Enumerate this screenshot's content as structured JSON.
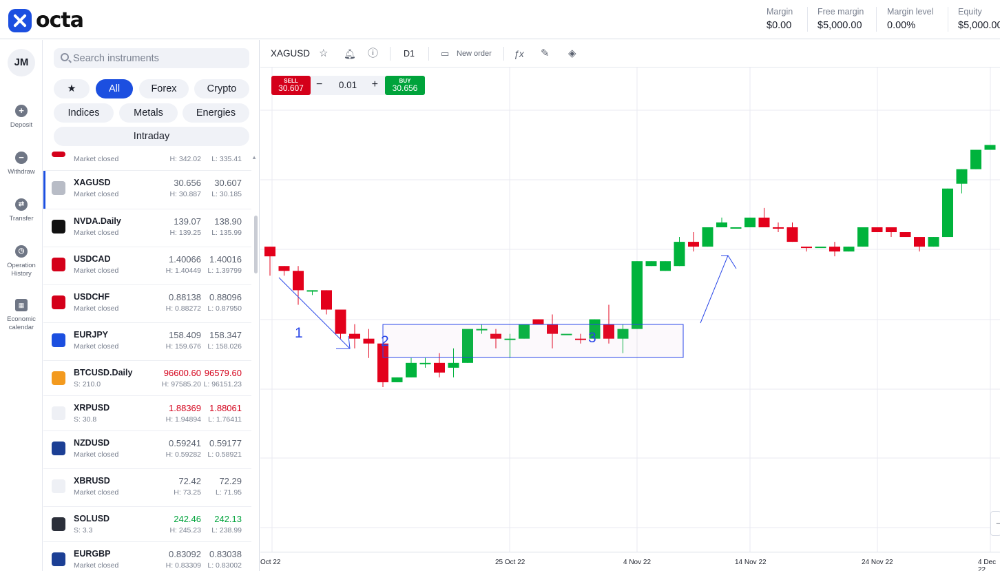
{
  "header": {
    "logo": "octa",
    "account": [
      {
        "label": "Margin",
        "value": "$0.00"
      },
      {
        "label": "Free margin",
        "value": "$5,000.00"
      },
      {
        "label": "Margin level",
        "value": "0.00%"
      },
      {
        "label": "Equity",
        "value": "$5,000.00"
      }
    ]
  },
  "rail": {
    "avatar": "JM",
    "items": [
      {
        "label": "Deposit",
        "icon": "plus-circle-icon"
      },
      {
        "label": "Withdraw",
        "icon": "minus-circle-icon"
      },
      {
        "label": "Transfer",
        "icon": "transfer-icon"
      },
      {
        "label": "Operation History",
        "icon": "clock-icon"
      },
      {
        "label": "Economic calendar",
        "icon": "calendar-icon"
      }
    ]
  },
  "panel": {
    "search_placeholder": "Search instruments",
    "chips": [
      "★",
      "All",
      "Forex",
      "Crypto",
      "Indices",
      "Metals",
      "Energies",
      "Intraday"
    ],
    "active_chip": "All",
    "instruments": [
      {
        "name": "",
        "sub": "Market closed",
        "p1": "",
        "p2": "",
        "h": "H: 342.02",
        "l": "L: 335.41",
        "color": "",
        "flag": "#d4001a"
      },
      {
        "name": "XAGUSD",
        "sub": "Market closed",
        "p1": "30.656",
        "p2": "30.607",
        "h": "H: 30.887",
        "l": "L: 30.185",
        "color": "",
        "flag": "#b8bcc6"
      },
      {
        "name": "NVDA.Daily",
        "sub": "Market closed",
        "p1": "139.07",
        "p2": "138.90",
        "h": "H: 139.25",
        "l": "L: 135.99",
        "color": "",
        "flag": "#111111"
      },
      {
        "name": "USDCAD",
        "sub": "Market closed",
        "p1": "1.40066",
        "p2": "1.40016",
        "h": "H: 1.40449",
        "l": "L: 1.39799",
        "color": "",
        "flag": "#d4001a"
      },
      {
        "name": "USDCHF",
        "sub": "Market closed",
        "p1": "0.88138",
        "p2": "0.88096",
        "h": "H: 0.88272",
        "l": "L: 0.87950",
        "color": "",
        "flag": "#d4001a"
      },
      {
        "name": "EURJPY",
        "sub": "Market closed",
        "p1": "158.409",
        "p2": "158.347",
        "h": "H: 159.676",
        "l": "L: 158.026",
        "color": "",
        "flag": "#1c4fe0"
      },
      {
        "name": "BTCUSD.Daily",
        "sub": "S: 210.0",
        "p1": "96600.60",
        "p2": "96579.60",
        "h": "H: 97585.20",
        "l": "L: 96151.23",
        "color": "red",
        "flag": "#f39a1e"
      },
      {
        "name": "XRPUSD",
        "sub": "S: 30.8",
        "p1": "1.88369",
        "p2": "1.88061",
        "h": "H: 1.94894",
        "l": "L: 1.76411",
        "color": "red",
        "flag": "#eef0f5"
      },
      {
        "name": "NZDUSD",
        "sub": "Market closed",
        "p1": "0.59241",
        "p2": "0.59177",
        "h": "H: 0.59282",
        "l": "L: 0.58921",
        "color": "",
        "flag": "#1c3f95"
      },
      {
        "name": "XBRUSD",
        "sub": "Market closed",
        "p1": "72.42",
        "p2": "72.29",
        "h": "H: 73.25",
        "l": "L: 71.95",
        "color": "",
        "flag": "#eef0f5"
      },
      {
        "name": "SOLUSD",
        "sub": "S: 3.3",
        "p1": "242.46",
        "p2": "242.13",
        "h": "H: 245.23",
        "l": "L: 238.99",
        "color": "green",
        "flag": "#2b2f3a"
      },
      {
        "name": "EURGBP",
        "sub": "Market closed",
        "p1": "0.83092",
        "p2": "0.83038",
        "h": "H: 0.83309",
        "l": "L: 0.83002",
        "color": "",
        "flag": "#1c3f95"
      }
    ]
  },
  "chart_toolbar": {
    "symbol": "XAGUSD",
    "timeframe": "D1",
    "new_order": "New order"
  },
  "trade": {
    "sell_label": "SELL",
    "sell_price": "30.607",
    "buy_label": "BUY",
    "buy_price": "30.656",
    "quantity": "0.01",
    "minus": "−",
    "plus": "+"
  },
  "annotations": [
    "1",
    "2",
    "3"
  ],
  "chart_data": {
    "type": "candlestick",
    "symbol": "XAGUSD",
    "timeframe": "D1",
    "x_ticks": [
      "Oct 22",
      "25 Oct 22",
      "4 Nov 22",
      "14 Nov 22",
      "24 Nov 22",
      "4 Dec 22"
    ],
    "candles_ohlc_relative": [
      [
        0.37,
        0.37,
        0.43,
        0.39,
        "down"
      ],
      [
        0.41,
        0.41,
        0.43,
        0.42,
        "down"
      ],
      [
        0.42,
        0.41,
        0.49,
        0.46,
        "down"
      ],
      [
        0.46,
        0.46,
        0.47,
        0.46,
        "up"
      ],
      [
        0.46,
        0.46,
        0.51,
        0.5,
        "down"
      ],
      [
        0.5,
        0.5,
        0.56,
        0.55,
        "down"
      ],
      [
        0.55,
        0.53,
        0.58,
        0.56,
        "down"
      ],
      [
        0.56,
        0.54,
        0.6,
        0.57,
        "down"
      ],
      [
        0.57,
        0.53,
        0.66,
        0.65,
        "down"
      ],
      [
        0.65,
        0.64,
        0.65,
        0.64,
        "up"
      ],
      [
        0.64,
        0.6,
        0.64,
        0.61,
        "up"
      ],
      [
        0.61,
        0.6,
        0.62,
        0.61,
        "up"
      ],
      [
        0.61,
        0.59,
        0.64,
        0.63,
        "down"
      ],
      [
        0.62,
        0.58,
        0.64,
        0.61,
        "up"
      ],
      [
        0.61,
        0.58,
        0.61,
        0.54,
        "up"
      ],
      [
        0.54,
        0.53,
        0.55,
        0.54,
        "up"
      ],
      [
        0.55,
        0.54,
        0.58,
        0.56,
        "down"
      ],
      [
        0.56,
        0.55,
        0.6,
        0.56,
        "up"
      ],
      [
        0.56,
        0.53,
        0.56,
        0.53,
        "up"
      ],
      [
        0.53,
        0.52,
        0.53,
        0.52,
        "down"
      ],
      [
        0.53,
        0.51,
        0.58,
        0.55,
        "down"
      ],
      [
        0.55,
        0.55,
        0.55,
        0.55,
        "up"
      ],
      [
        0.56,
        0.55,
        0.57,
        0.56,
        "down"
      ],
      [
        0.56,
        0.52,
        0.56,
        0.52,
        "up"
      ],
      [
        0.53,
        0.49,
        0.57,
        0.56,
        "down"
      ],
      [
        0.56,
        0.53,
        0.59,
        0.54,
        "up"
      ],
      [
        0.54,
        0.4,
        0.54,
        0.4,
        "up"
      ],
      [
        0.41,
        0.4,
        0.41,
        0.4,
        "up"
      ],
      [
        0.42,
        0.4,
        0.42,
        0.4,
        "up"
      ],
      [
        0.41,
        0.35,
        0.41,
        0.36,
        "up"
      ],
      [
        0.36,
        0.34,
        0.38,
        0.37,
        "down"
      ],
      [
        0.37,
        0.33,
        0.37,
        0.33,
        "up"
      ],
      [
        0.33,
        0.31,
        0.33,
        0.32,
        "up"
      ],
      [
        0.33,
        0.33,
        0.33,
        0.33,
        "up"
      ],
      [
        0.33,
        0.31,
        0.33,
        0.31,
        "up"
      ],
      [
        0.31,
        0.29,
        0.33,
        0.33,
        "down"
      ],
      [
        0.33,
        0.32,
        0.34,
        0.33,
        "down"
      ],
      [
        0.33,
        0.32,
        0.36,
        0.36,
        "down"
      ],
      [
        0.37,
        0.37,
        0.38,
        0.37,
        "down"
      ],
      [
        0.37,
        0.37,
        0.37,
        0.37,
        "up"
      ],
      [
        0.37,
        0.36,
        0.39,
        0.38,
        "down"
      ],
      [
        0.38,
        0.37,
        0.38,
        0.37,
        "up"
      ],
      [
        0.37,
        0.33,
        0.37,
        0.33,
        "up"
      ],
      [
        0.33,
        0.33,
        0.34,
        0.34,
        "down"
      ],
      [
        0.33,
        0.33,
        0.35,
        0.34,
        "down"
      ],
      [
        0.34,
        0.34,
        0.35,
        0.35,
        "down"
      ],
      [
        0.35,
        0.36,
        0.38,
        0.37,
        "down"
      ],
      [
        0.37,
        0.35,
        0.37,
        0.35,
        "up"
      ],
      [
        0.35,
        0.25,
        0.35,
        0.25,
        "up"
      ],
      [
        0.24,
        0.21,
        0.26,
        0.21,
        "up"
      ],
      [
        0.21,
        0.17,
        0.21,
        0.17,
        "up"
      ],
      [
        0.17,
        0.16,
        0.17,
        0.16,
        "up"
      ],
      [
        0.16,
        0.15,
        0.21,
        0.21,
        "down"
      ]
    ]
  }
}
